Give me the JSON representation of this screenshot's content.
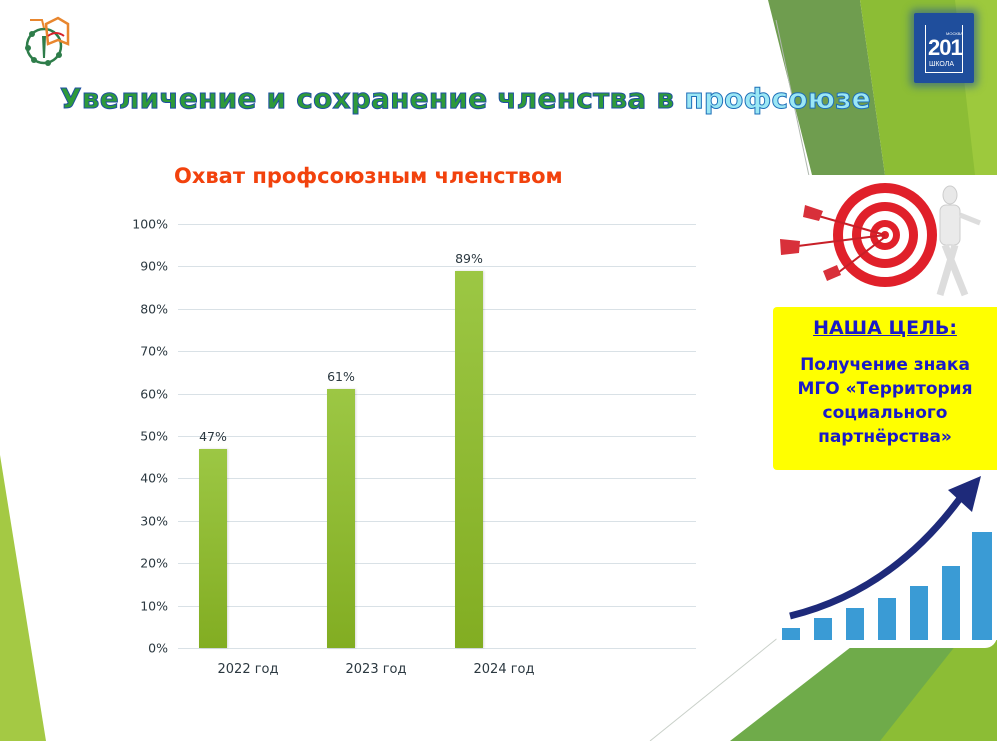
{
  "slide": {
    "title_part1": "Увеличение и сохранение членства в ",
    "title_part2": "профсоюзе",
    "colors": {
      "title_green": "#2e9a3a",
      "title_outline": "#1e4fa0",
      "title_light_blue": "#9be7f5",
      "chart_title": "#f2420d",
      "bar_green": "#8fbb33",
      "goal_yellow": "#ffff00",
      "goal_text": "#1a1ac8",
      "accent_green": "#8dc63f"
    }
  },
  "logos": {
    "left": "union-logo",
    "right": {
      "top_text": "МОСКВА",
      "number": "201",
      "caption": "ШКОЛА"
    }
  },
  "chart_data": {
    "type": "bar",
    "title": "Охват профсоюзным членством",
    "categories": [
      "2022 год",
      "2023 год",
      "2024 год"
    ],
    "values": [
      47,
      61,
      89
    ],
    "value_labels": [
      "47%",
      "61%",
      "89%"
    ],
    "xlabel": "",
    "ylabel": "",
    "ylim": [
      0,
      100
    ],
    "yticks": [
      "0%",
      "10%",
      "20%",
      "30%",
      "40%",
      "50%",
      "60%",
      "70%",
      "80%",
      "90%",
      "100%"
    ],
    "grid": true,
    "legend": null
  },
  "goal": {
    "heading": "НАША ЦЕЛЬ:",
    "lines": [
      "Получение знака",
      "МГО «Территория",
      "социального",
      "партнёрства»"
    ]
  },
  "images": {
    "target": "target-with-arrows-figure",
    "growth": "growth-bar-chart-arrow"
  }
}
